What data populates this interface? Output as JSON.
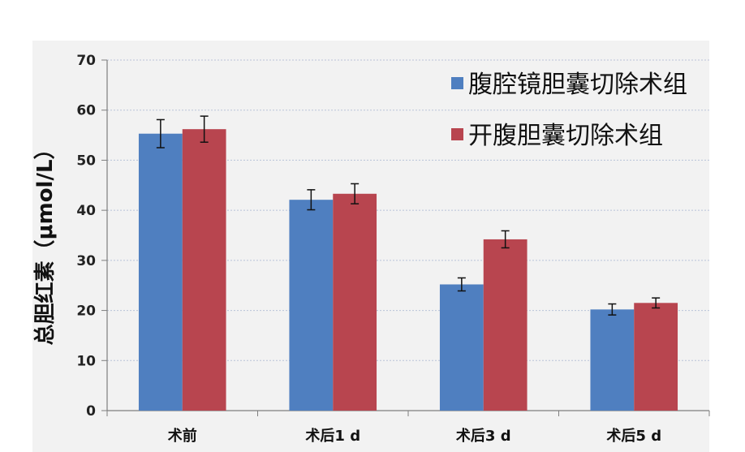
{
  "chart_data": {
    "type": "bar",
    "ylabel": "总胆红素（μmol/L）",
    "xlabel": "",
    "ylim": [
      0,
      70
    ],
    "yticks": [
      0,
      10,
      20,
      30,
      40,
      50,
      60,
      70
    ],
    "grid": true,
    "legend_position": "top-right",
    "categories": [
      "术前",
      "术后1 d",
      "术后3 d",
      "术后5 d"
    ],
    "series": [
      {
        "name": "腹腔镜胆囊切除术组",
        "color": "#4f7fc0",
        "values": [
          55.3,
          42.1,
          25.2,
          20.2
        ],
        "errors": [
          2.8,
          2.0,
          1.3,
          1.1
        ]
      },
      {
        "name": "开腹胆囊切除术组",
        "color": "#b8454f",
        "values": [
          56.2,
          43.3,
          34.2,
          21.5
        ],
        "errors": [
          2.6,
          2.0,
          1.7,
          1.0
        ]
      }
    ]
  }
}
